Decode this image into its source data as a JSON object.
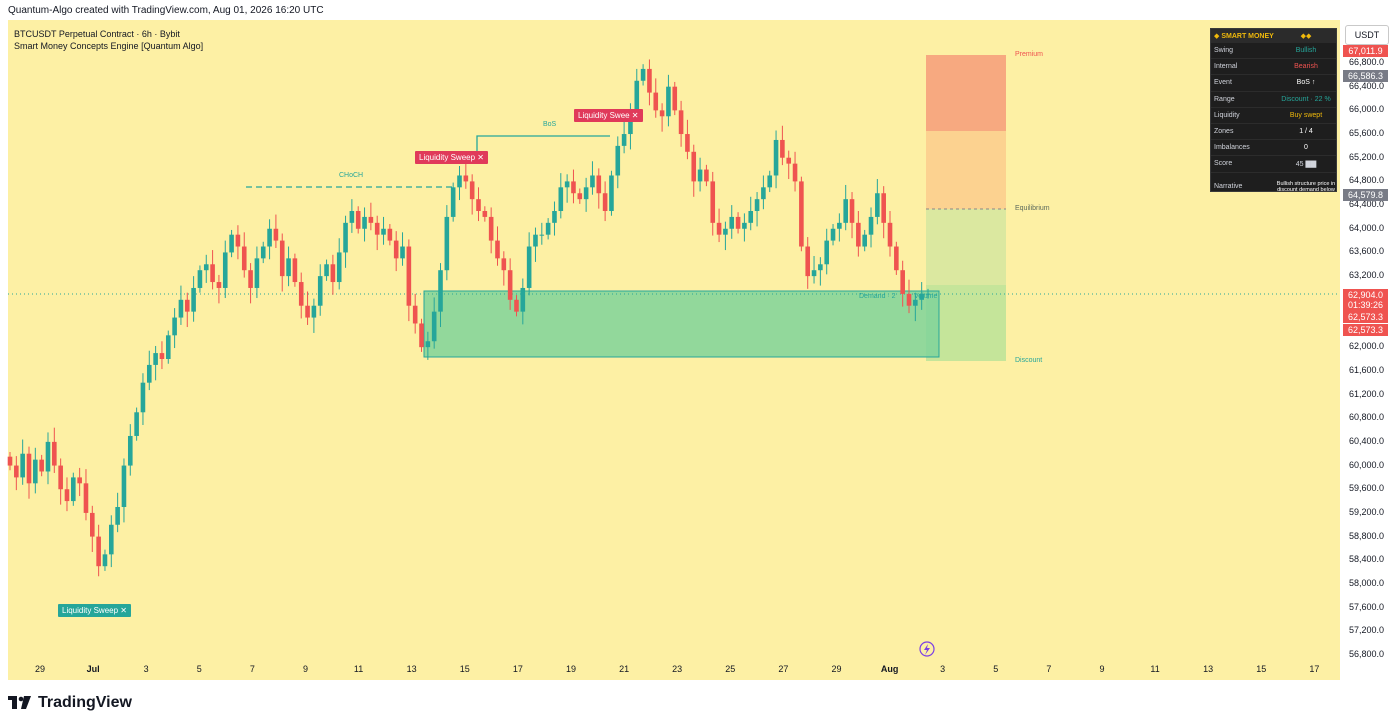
{
  "attribution": "Quantum-Algo created with TradingView.com, Aug 01, 2026 16:20 UTC",
  "symbol_line": "BTCUSDT Perpetual Contract · 6h · Bybit",
  "indicator_line": "Smart Money Concepts Engine [Quantum Algo]",
  "currency": "USDT",
  "logo_text": "TradingView",
  "colors": {
    "background": "#fdf0a4",
    "bull": "#26a69a",
    "bear": "#ef5350",
    "premium": "#f7a980",
    "premium_light": "#fcd290",
    "discount": "#c5e59a",
    "demand": "#7fd39a"
  },
  "price_tags": {
    "high": "67,011.9",
    "prev": "66,586.3",
    "mid": "64,579.8",
    "last": "62,904.0",
    "countdown": "01:39:26",
    "low1": "62,573.3",
    "low2": "62,573.3"
  },
  "annotations": {
    "premium": "Premium",
    "equilibrium": "Equilibrium",
    "discount": "Discount",
    "demand": "Demand · 2",
    "volume": "Volume",
    "choch": "CHoCH",
    "bos": "BoS",
    "sweep_low": "Liquidity Sweep ✕",
    "sweep_mid": "Liquidity Sweep ✕",
    "sweep_high": "Liquidity Swee ✕"
  },
  "smc_table": {
    "title": "◆ SMART MONEY",
    "title_value": "◆◆",
    "rows": [
      {
        "k": "Swing",
        "v": "Bullish",
        "color": "#26a69a"
      },
      {
        "k": "Internal",
        "v": "Bearish",
        "color": "#ef5350"
      },
      {
        "k": "Event",
        "v": "BoS ↑",
        "color": "#ffffff"
      },
      {
        "k": "Range",
        "v": "Discount · 22 %",
        "color": "#26a69a"
      },
      {
        "k": "Liquidity",
        "v": "Buy swept",
        "color": "#f0b90b"
      },
      {
        "k": "Zones",
        "v": "1 / 4",
        "color": "#ffffff"
      },
      {
        "k": "Imbalances",
        "v": "0",
        "color": "#ffffff"
      },
      {
        "k": "Score",
        "v": "45 ▇▇",
        "color": "#d1d4dc"
      }
    ],
    "narrative_label": "Narrative",
    "narrative_value": "Bullish structure price in discount demand below"
  },
  "chart_data": {
    "type": "candlestick",
    "timeframe": "6h",
    "ylim": [
      56800,
      67600
    ],
    "yticks": [
      66800,
      66400,
      66000,
      65600,
      65200,
      64800,
      64400,
      64000,
      63600,
      63200,
      62000,
      61600,
      61200,
      60800,
      60400,
      60000,
      59600,
      59200,
      58800,
      58400,
      58000,
      57600,
      57200,
      56800
    ],
    "x_labels": [
      "29",
      "Jul",
      "3",
      "5",
      "7",
      "9",
      "11",
      "13",
      "15",
      "17",
      "19",
      "21",
      "23",
      "25",
      "27",
      "29",
      "Aug",
      "3",
      "5",
      "7",
      "9",
      "11",
      "13",
      "15",
      "17"
    ],
    "closes": [
      60000,
      59800,
      60200,
      59700,
      60100,
      59900,
      60400,
      60000,
      59600,
      59400,
      59800,
      59700,
      59200,
      58800,
      58300,
      58500,
      59000,
      59300,
      60000,
      60500,
      60900,
      61400,
      61700,
      61900,
      61800,
      62200,
      62500,
      62800,
      62600,
      63000,
      63300,
      63400,
      63100,
      63000,
      63600,
      63900,
      63700,
      63300,
      63000,
      63500,
      63700,
      64000,
      63800,
      63200,
      63500,
      63100,
      62700,
      62500,
      62700,
      63200,
      63400,
      63100,
      63600,
      64100,
      64300,
      64000,
      64200,
      64100,
      63900,
      64000,
      63800,
      63500,
      63700,
      62700,
      62400,
      62000,
      62100,
      62600,
      63300,
      64200,
      64700,
      64900,
      64800,
      64500,
      64300,
      64200,
      63800,
      63500,
      63300,
      62800,
      62600,
      63000,
      63700,
      63900,
      63900,
      64100,
      64300,
      64700,
      64800,
      64600,
      64500,
      64700,
      64900,
      64600,
      64300,
      64900,
      65400,
      65600,
      66000,
      66500,
      66700,
      66300,
      66000,
      65900,
      66400,
      66000,
      65600,
      65300,
      64800,
      65000,
      64800,
      64100,
      63900,
      64000,
      64200,
      64000,
      64100,
      64300,
      64500,
      64700,
      64900,
      65500,
      65200,
      65100,
      64800,
      63700,
      63200,
      63300,
      63400,
      63800,
      64000,
      64100,
      64500,
      64100,
      63700,
      63900,
      64200,
      64600,
      64100,
      63700,
      63300,
      62900,
      62700,
      62800,
      62900,
      62904
    ]
  }
}
